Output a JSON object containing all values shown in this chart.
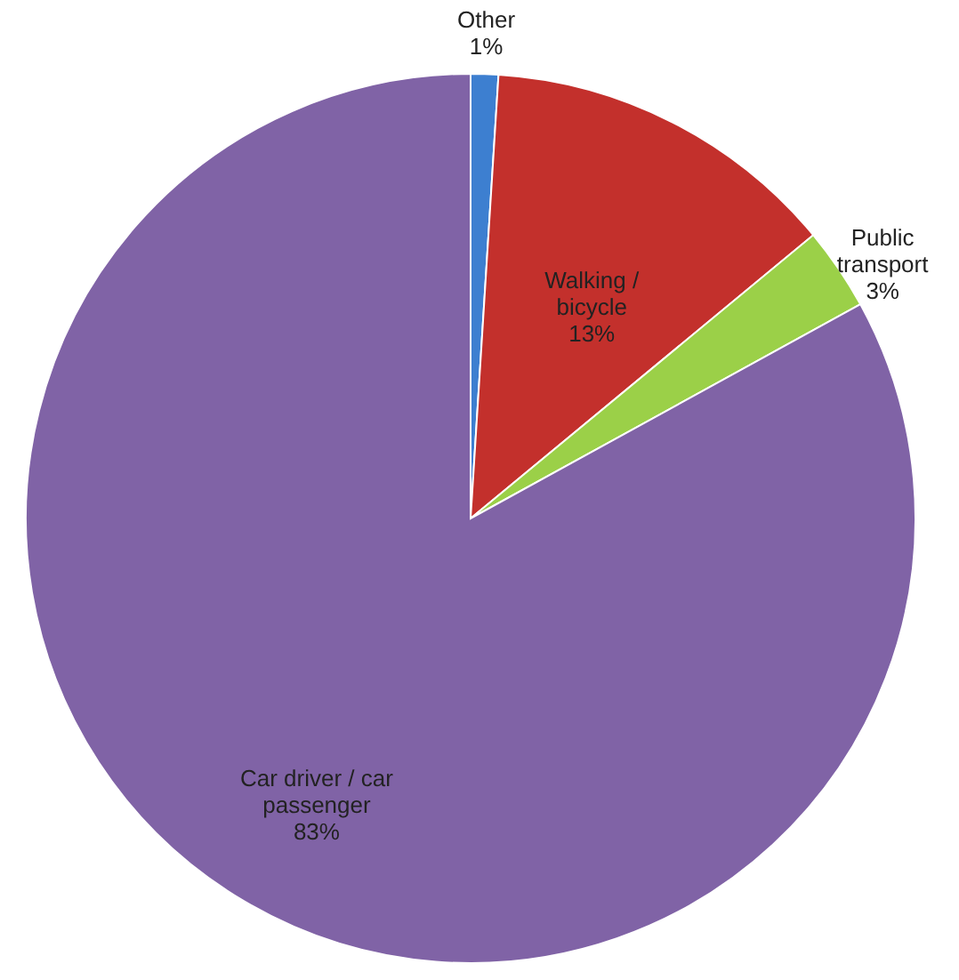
{
  "chart_data": {
    "type": "pie",
    "categories": [
      "Other",
      "Walking / bicycle",
      "Public transport",
      "Car driver / car passenger"
    ],
    "values": [
      1,
      13,
      3,
      83
    ],
    "value_labels": [
      "1%",
      "13%",
      "3%",
      "83%"
    ],
    "colors": [
      "#3d7fd0",
      "#c3302c",
      "#9bd048",
      "#8063a6"
    ],
    "legend": false
  }
}
